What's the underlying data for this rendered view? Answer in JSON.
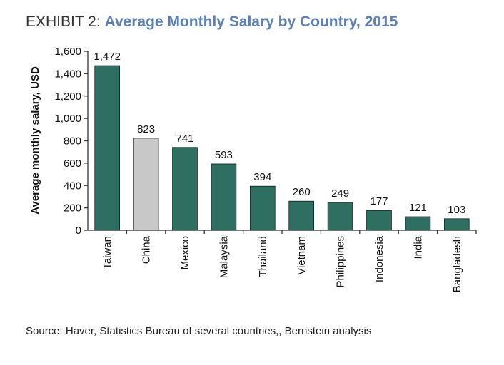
{
  "exhibit": {
    "label": "EXHIBIT 2:",
    "heading": "Average Monthly Salary by Country, 2015"
  },
  "source": "Source: Haver, Statistics Bureau of several countries,, Bernstein analysis",
  "colors": {
    "bar": "#2f6f62",
    "highlight_bar": "#c8c8c8",
    "heading": "#5b7fb8"
  },
  "chart_data": {
    "type": "bar",
    "title": "",
    "xlabel": "",
    "ylabel": "Average monthly salary, USD",
    "categories": [
      "Taiwan",
      "China",
      "Mexico",
      "Malaysia",
      "Thailand",
      "Vietnam",
      "Philippines",
      "Indonesia",
      "India",
      "Bangladesh"
    ],
    "values": [
      1472,
      823,
      741,
      593,
      394,
      260,
      249,
      177,
      121,
      103
    ],
    "value_labels": [
      "1,472",
      "823",
      "741",
      "593",
      "394",
      "260",
      "249",
      "177",
      "121",
      "103"
    ],
    "highlighted": [
      "China"
    ],
    "ylim": [
      0,
      1600
    ],
    "yticks": [
      0,
      200,
      400,
      600,
      800,
      1000,
      1200,
      1400,
      1600
    ],
    "ytick_labels": [
      "0",
      "200",
      "400",
      "600",
      "800",
      "1,000",
      "1,200",
      "1,400",
      "1,600"
    ],
    "grid": false,
    "legend": "none"
  }
}
